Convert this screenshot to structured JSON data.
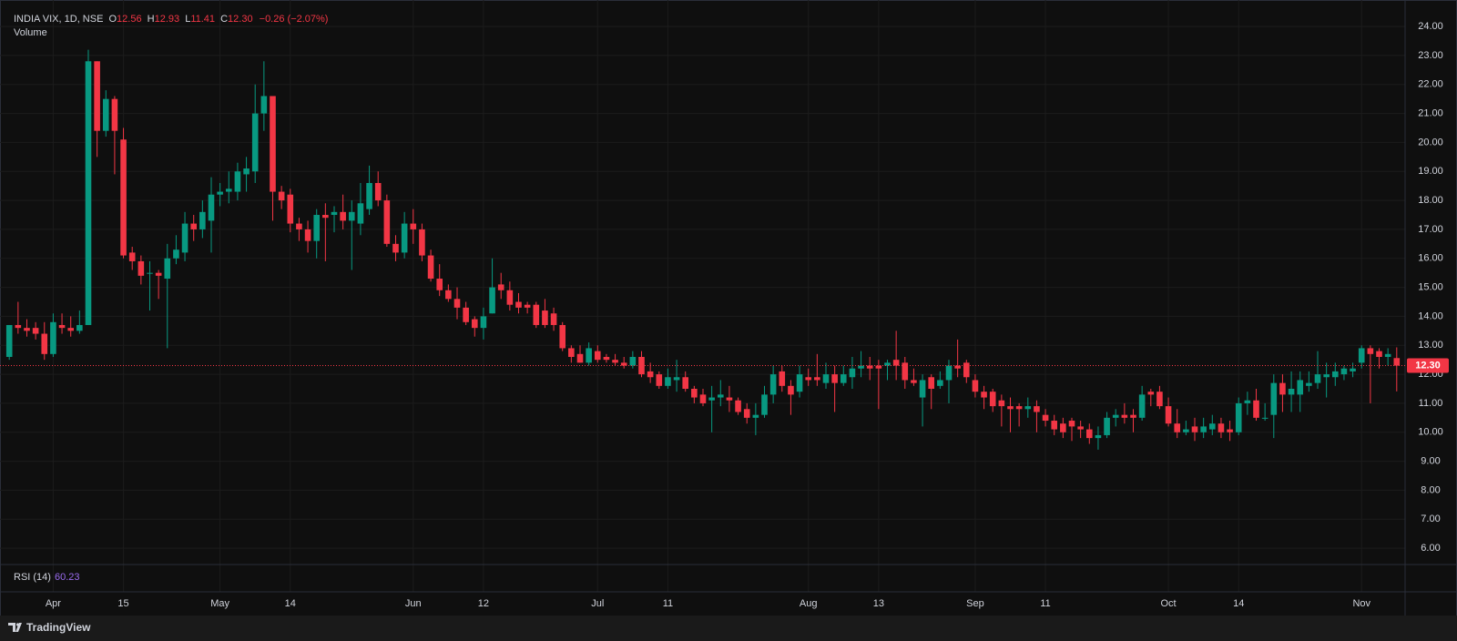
{
  "chart_data": {
    "type": "candlestick",
    "header": {
      "symbol": "INDIA VIX, 1D, NSE",
      "o_label": "O",
      "open": "12.56",
      "h_label": "H",
      "high": "12.93",
      "l_label": "L",
      "low": "11.41",
      "c_label": "C",
      "close": "12.30",
      "change": "−0.26 (−2.07%)"
    },
    "volume_label": "Volume",
    "rsi_label": "RSI (14)",
    "rsi_value": "60.23",
    "brand": "TradingView",
    "up_color": "#089981",
    "down_color": "#f23645",
    "grid": true,
    "ylim": [
      5.5,
      24.6
    ],
    "yticks": [
      {
        "value": 6,
        "label": "6.00"
      },
      {
        "value": 7,
        "label": "7.00"
      },
      {
        "value": 8,
        "label": "8.00"
      },
      {
        "value": 9,
        "label": "9.00"
      },
      {
        "value": 10,
        "label": "10.00"
      },
      {
        "value": 11,
        "label": "11.00"
      },
      {
        "value": 12,
        "label": "12.00"
      },
      {
        "value": 13,
        "label": "13.00"
      },
      {
        "value": 14,
        "label": "14.00"
      },
      {
        "value": 15,
        "label": "15.00"
      },
      {
        "value": 16,
        "label": "16.00"
      },
      {
        "value": 17,
        "label": "17.00"
      },
      {
        "value": 18,
        "label": "18.00"
      },
      {
        "value": 19,
        "label": "19.00"
      },
      {
        "value": 20,
        "label": "20.00"
      },
      {
        "value": 21,
        "label": "21.00"
      },
      {
        "value": 22,
        "label": "22.00"
      },
      {
        "value": 23,
        "label": "23.00"
      },
      {
        "value": 24,
        "label": "24.00"
      }
    ],
    "categories": [
      null,
      null,
      null,
      null,
      null,
      "Apr",
      null,
      null,
      null,
      null,
      null,
      null,
      null,
      "15",
      null,
      null,
      null,
      null,
      null,
      null,
      null,
      null,
      null,
      null,
      "May",
      null,
      null,
      null,
      null,
      null,
      null,
      null,
      "14",
      null,
      null,
      null,
      null,
      null,
      null,
      null,
      null,
      null,
      null,
      null,
      null,
      null,
      "Jun",
      null,
      null,
      null,
      null,
      null,
      null,
      null,
      "12",
      null,
      null,
      null,
      null,
      null,
      null,
      null,
      null,
      null,
      null,
      null,
      null,
      "Jul",
      null,
      null,
      null,
      null,
      null,
      null,
      null,
      "11",
      null,
      null,
      null,
      null,
      null,
      null,
      null,
      null,
      null,
      null,
      null,
      null,
      null,
      null,
      null,
      "Aug",
      null,
      null,
      null,
      null,
      null,
      null,
      null,
      "13",
      null,
      null,
      null,
      null,
      null,
      null,
      null,
      null,
      null,
      null,
      "Sep",
      null,
      null,
      null,
      null,
      null,
      null,
      null,
      "11",
      null,
      null,
      null,
      null,
      null,
      null,
      null,
      null,
      null,
      null,
      null,
      null,
      null,
      "Oct",
      null,
      null,
      null,
      null,
      null,
      null,
      null,
      "14",
      null,
      null,
      null,
      null,
      null,
      null,
      null,
      null,
      null,
      null,
      null,
      null,
      null,
      "Nov",
      null,
      null,
      null,
      null
    ],
    "open": [
      12.6,
      13.7,
      13.6,
      13.6,
      13.4,
      12.7,
      13.7,
      13.6,
      13.5,
      13.7,
      22.8,
      20.4,
      21.5,
      20.1,
      16.2,
      15.9,
      15.5,
      15.5,
      15.3,
      16.0,
      16.2,
      17.2,
      17.0,
      17.3,
      18.2,
      18.3,
      18.3,
      18.9,
      19.0,
      21.0,
      21.6,
      18.3,
      18.2,
      17.2,
      17.0,
      16.6,
      17.5,
      17.5,
      17.6,
      17.3,
      17.2,
      17.7,
      18.6,
      18.0,
      16.5,
      16.2,
      17.2,
      17.0,
      16.1,
      15.3,
      14.9,
      14.6,
      14.3,
      13.9,
      13.6,
      14.1,
      15.1,
      14.9,
      14.5,
      14.4,
      14.4,
      14.2,
      14.1,
      13.7,
      12.9,
      12.7,
      12.4,
      12.8,
      12.6,
      12.5,
      12.4,
      12.3,
      12.6,
      12.1,
      12.0,
      11.6,
      11.8,
      11.9,
      11.5,
      11.3,
      11.1,
      11.2,
      11.2,
      11.1,
      10.8,
      10.5,
      10.6,
      11.3,
      12.1,
      11.6,
      11.4,
      11.9,
      11.9,
      11.7,
      12.0,
      11.7,
      11.9,
      12.2,
      12.3,
      12.3,
      12.3,
      12.5,
      12.4,
      11.8,
      11.2,
      11.9,
      11.6,
      11.8,
      12.3,
      12.4,
      11.8,
      11.4,
      11.4,
      11.1,
      10.9,
      10.9,
      10.8,
      10.9,
      10.6,
      10.4,
      10.3,
      10.4,
      10.2,
      10.1,
      9.8,
      9.9,
      10.5,
      10.6,
      10.6,
      10.5,
      11.4,
      11.4,
      10.9,
      10.3,
      10.0,
      10.2,
      10.0,
      10.1,
      10.3,
      10.1,
      10.0,
      11.0,
      11.1,
      10.5,
      10.6,
      11.7,
      11.3,
      11.3,
      11.6,
      11.7,
      11.9,
      11.9,
      12.0,
      12.1,
      12.4,
      12.9,
      12.8,
      12.6,
      12.56
    ],
    "high": [
      13.7,
      14.5,
      13.9,
      13.8,
      13.8,
      14.1,
      14.1,
      14.0,
      14.2,
      23.2,
      22.8,
      21.8,
      21.6,
      20.5,
      16.4,
      16.1,
      15.9,
      15.6,
      16.5,
      16.8,
      17.6,
      17.5,
      18.0,
      18.8,
      18.6,
      19.0,
      19.3,
      19.5,
      22.0,
      22.8,
      21.6,
      18.5,
      18.4,
      17.4,
      17.3,
      17.7,
      17.9,
      17.8,
      18.2,
      18.0,
      18.6,
      19.2,
      19.0,
      18.2,
      16.8,
      17.6,
      17.7,
      17.2,
      16.3,
      15.8,
      15.1,
      15.0,
      14.5,
      14.0,
      14.3,
      16.0,
      15.5,
      15.2,
      14.8,
      14.5,
      14.5,
      14.6,
      14.3,
      13.8,
      13.0,
      13.0,
      13.1,
      13.0,
      12.7,
      12.7,
      12.6,
      12.8,
      12.8,
      12.4,
      12.1,
      12.2,
      12.5,
      12.1,
      11.6,
      11.5,
      11.6,
      11.8,
      11.6,
      11.2,
      11.0,
      11.0,
      11.6,
      12.3,
      12.3,
      11.8,
      12.3,
      12.2,
      12.7,
      12.4,
      12.3,
      12.3,
      12.6,
      12.8,
      12.6,
      12.5,
      12.5,
      13.5,
      12.6,
      12.2,
      12.0,
      12.0,
      12.1,
      12.5,
      13.2,
      12.5,
      12.0,
      11.6,
      11.5,
      11.3,
      11.2,
      11.0,
      11.2,
      11.1,
      10.8,
      10.6,
      10.5,
      10.5,
      10.4,
      10.3,
      10.2,
      10.7,
      10.8,
      11.0,
      10.8,
      11.6,
      11.5,
      11.6,
      11.2,
      10.8,
      10.4,
      10.5,
      10.5,
      10.6,
      10.5,
      10.4,
      11.2,
      11.4,
      11.5,
      11.0,
      12.0,
      12.0,
      12.1,
      12.1,
      12.1,
      12.8,
      12.4,
      12.4,
      12.3,
      12.4,
      13.0,
      13.0,
      12.9,
      12.9,
      12.93
    ],
    "low": [
      12.5,
      13.4,
      13.3,
      13.2,
      12.5,
      12.6,
      13.4,
      13.3,
      13.4,
      13.7,
      19.5,
      20.2,
      18.9,
      16.0,
      15.6,
      15.1,
      14.2,
      14.6,
      12.9,
      15.8,
      15.9,
      16.6,
      16.7,
      16.2,
      17.8,
      17.9,
      18.0,
      18.3,
      18.6,
      20.4,
      17.3,
      17.7,
      16.9,
      16.6,
      16.2,
      16.0,
      15.9,
      16.9,
      17.0,
      15.6,
      16.8,
      17.5,
      17.8,
      16.4,
      15.9,
      16.0,
      16.5,
      15.9,
      15.2,
      14.7,
      14.5,
      13.9,
      13.7,
      13.3,
      13.2,
      14.1,
      14.6,
      14.2,
      14.1,
      14.1,
      13.6,
      13.6,
      13.5,
      12.8,
      12.4,
      12.4,
      12.3,
      12.4,
      12.4,
      12.3,
      12.2,
      12.2,
      11.9,
      11.7,
      11.5,
      11.5,
      11.4,
      11.4,
      11.0,
      10.9,
      10.0,
      10.9,
      10.7,
      10.6,
      10.3,
      9.9,
      10.5,
      11.0,
      11.4,
      10.6,
      11.2,
      11.6,
      11.6,
      11.5,
      10.7,
      11.6,
      11.5,
      11.9,
      11.8,
      10.8,
      11.8,
      11.8,
      11.5,
      11.6,
      10.2,
      10.8,
      11.5,
      11.0,
      11.9,
      11.7,
      11.2,
      10.8,
      10.7,
      10.2,
      10.0,
      10.2,
      10.5,
      10.0,
      10.2,
      9.9,
      9.8,
      9.7,
      9.8,
      9.6,
      9.4,
      9.8,
      10.2,
      10.3,
      10.0,
      10.4,
      10.9,
      10.8,
      10.2,
      9.8,
      9.9,
      9.7,
      9.8,
      9.9,
      9.8,
      9.7,
      9.9,
      10.6,
      10.4,
      10.4,
      9.8,
      10.7,
      10.7,
      10.7,
      11.4,
      11.5,
      11.2,
      11.6,
      11.8,
      11.9,
      12.2,
      11.0,
      12.2,
      12.3,
      11.41
    ],
    "close": [
      13.7,
      13.6,
      13.5,
      13.4,
      12.7,
      13.8,
      13.6,
      13.5,
      13.7,
      22.8,
      20.4,
      21.5,
      20.4,
      16.1,
      15.9,
      15.4,
      15.5,
      15.4,
      16.0,
      16.3,
      17.2,
      17.0,
      17.6,
      18.2,
      18.3,
      18.4,
      19.0,
      19.1,
      21.0,
      21.6,
      18.3,
      18.0,
      17.2,
      17.0,
      16.6,
      17.5,
      17.4,
      17.6,
      17.3,
      17.6,
      17.9,
      18.6,
      18.0,
      16.5,
      16.2,
      17.2,
      17.0,
      16.1,
      15.3,
      14.9,
      14.6,
      14.3,
      13.8,
      13.6,
      14.0,
      15.0,
      14.9,
      14.4,
      14.3,
      14.3,
      13.7,
      13.7,
      13.7,
      12.9,
      12.6,
      12.4,
      12.9,
      12.5,
      12.5,
      12.4,
      12.3,
      12.6,
      12.0,
      11.9,
      11.6,
      11.9,
      11.9,
      11.5,
      11.2,
      11.0,
      11.2,
      11.3,
      11.1,
      10.7,
      10.5,
      10.6,
      11.3,
      12.0,
      11.6,
      11.3,
      12.0,
      11.8,
      11.8,
      12.0,
      11.7,
      12.0,
      12.2,
      12.3,
      12.2,
      12.2,
      12.4,
      12.3,
      11.8,
      11.7,
      11.8,
      11.5,
      11.8,
      12.3,
      12.2,
      11.9,
      11.4,
      11.2,
      10.9,
      10.9,
      10.8,
      10.8,
      10.9,
      10.7,
      10.4,
      10.1,
      10.0,
      10.2,
      10.1,
      9.8,
      9.9,
      10.5,
      10.6,
      10.5,
      10.5,
      11.3,
      11.3,
      10.9,
      10.3,
      10.0,
      10.1,
      10.0,
      10.2,
      10.3,
      10.0,
      10.0,
      11.0,
      11.1,
      10.5,
      10.5,
      11.7,
      11.3,
      11.5,
      11.8,
      11.7,
      12.0,
      12.0,
      12.1,
      12.2,
      12.2,
      12.9,
      12.7,
      12.6,
      12.7,
      12.3
    ]
  }
}
